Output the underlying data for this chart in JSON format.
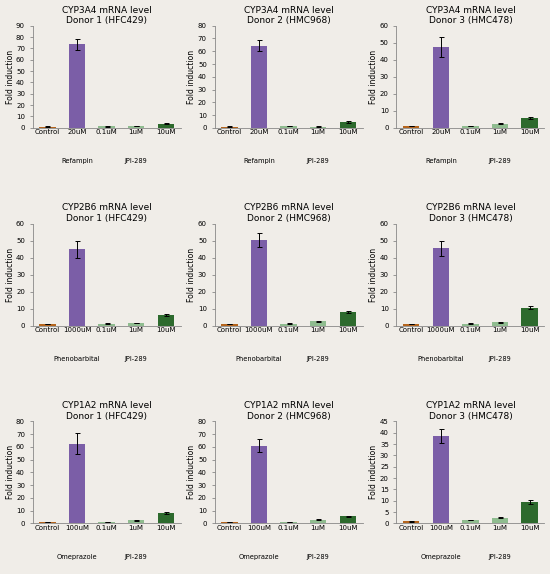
{
  "rows": [
    {
      "cyp": "CYP3A4",
      "inducer": "Refampin",
      "inducer_conc": "20uM",
      "jpi_concs": [
        "0.1uM",
        "1uM",
        "10uM"
      ],
      "donors": [
        {
          "title_line1": "CYP3A4 mRNA level",
          "title_line2": "Donor 1 (HFC429)",
          "values": [
            1.0,
            73.5,
            1.2,
            1.8,
            3.5
          ],
          "errors": [
            0.2,
            5.0,
            0.15,
            0.2,
            0.4
          ],
          "ylim": [
            0,
            90
          ],
          "yticks": [
            0,
            10,
            20,
            30,
            40,
            50,
            60,
            70,
            80,
            90
          ]
        },
        {
          "title_line1": "CYP3A4 mRNA level",
          "title_line2": "Donor 2 (HMC968)",
          "values": [
            1.0,
            64.5,
            1.3,
            1.0,
            4.5
          ],
          "errors": [
            0.2,
            4.0,
            0.2,
            0.15,
            0.5
          ],
          "ylim": [
            0,
            80
          ],
          "yticks": [
            0,
            10,
            20,
            30,
            40,
            50,
            60,
            70,
            80
          ]
        },
        {
          "title_line1": "CYP3A4 mRNA level",
          "title_line2": "Donor 3 (HMC478)",
          "values": [
            1.0,
            47.5,
            1.2,
            2.5,
            5.5
          ],
          "errors": [
            0.2,
            6.0,
            0.15,
            0.25,
            0.6
          ],
          "ylim": [
            0,
            60
          ],
          "yticks": [
            0,
            10,
            20,
            30,
            40,
            50,
            60
          ]
        }
      ]
    },
    {
      "cyp": "CYP2B6",
      "inducer": "Phenobarbital",
      "inducer_conc": "1000uM",
      "jpi_concs": [
        "0.1uM",
        "1uM",
        "10uM"
      ],
      "donors": [
        {
          "title_line1": "CYP2B6 mRNA level",
          "title_line2": "Donor 1 (HFC429)",
          "values": [
            1.0,
            45.0,
            1.2,
            1.5,
            6.5
          ],
          "errors": [
            0.2,
            5.0,
            0.15,
            0.2,
            0.6
          ],
          "ylim": [
            0,
            60
          ],
          "yticks": [
            0,
            10,
            20,
            30,
            40,
            50,
            60
          ]
        },
        {
          "title_line1": "CYP2B6 mRNA level",
          "title_line2": "Donor 2 (HMC968)",
          "values": [
            1.0,
            50.5,
            1.2,
            2.5,
            8.0
          ],
          "errors": [
            0.2,
            4.0,
            0.15,
            0.3,
            0.7
          ],
          "ylim": [
            0,
            60
          ],
          "yticks": [
            0,
            10,
            20,
            30,
            40,
            50,
            60
          ]
        },
        {
          "title_line1": "CYP2B6 mRNA level",
          "title_line2": "Donor 3 (HMC478)",
          "values": [
            1.0,
            45.5,
            1.2,
            2.0,
            10.5
          ],
          "errors": [
            0.2,
            4.5,
            0.15,
            0.25,
            0.8
          ],
          "ylim": [
            0,
            60
          ],
          "yticks": [
            0,
            10,
            20,
            30,
            40,
            50,
            60
          ]
        }
      ]
    },
    {
      "cyp": "CYP1A2",
      "inducer": "Omeprazole",
      "inducer_conc": "100uM",
      "jpi_concs": [
        "0.1uM",
        "1uM",
        "10uM"
      ],
      "donors": [
        {
          "title_line1": "CYP1A2 mRNA level",
          "title_line2": "Donor 1 (HFC429)",
          "values": [
            1.0,
            62.5,
            1.2,
            2.5,
            8.0
          ],
          "errors": [
            0.2,
            8.0,
            0.15,
            0.3,
            0.8
          ],
          "ylim": [
            0,
            80
          ],
          "yticks": [
            0,
            10,
            20,
            30,
            40,
            50,
            60,
            70,
            80
          ]
        },
        {
          "title_line1": "CYP1A2 mRNA level",
          "title_line2": "Donor 2 (HMC968)",
          "values": [
            1.0,
            61.0,
            1.0,
            2.8,
            5.5
          ],
          "errors": [
            0.2,
            5.0,
            0.15,
            0.3,
            0.6
          ],
          "ylim": [
            0,
            80
          ],
          "yticks": [
            0,
            10,
            20,
            30,
            40,
            50,
            60,
            70,
            80
          ]
        },
        {
          "title_line1": "CYP1A2 mRNA level",
          "title_line2": "Donor 3 (HMC478)",
          "values": [
            1.0,
            38.5,
            1.5,
            2.5,
            9.5
          ],
          "errors": [
            0.2,
            3.0,
            0.2,
            0.3,
            0.8
          ],
          "ylim": [
            0,
            45
          ],
          "yticks": [
            0,
            5,
            10,
            15,
            20,
            25,
            30,
            35,
            40,
            45
          ]
        }
      ]
    }
  ],
  "bar_colors": {
    "control": "#b5651d",
    "inducer": "#7b5ea7",
    "jpi_low": "#8fbc8f",
    "jpi_mid": "#8fbc8f",
    "jpi_high": "#2d6a2d"
  },
  "ylabel": "Fold induction",
  "background_color": "#f0ede8",
  "plot_bg_color": "#f0ede8",
  "title_fontsize": 6.5,
  "axis_fontsize": 5.5,
  "tick_fontsize": 5.0,
  "group_label_fontsize": 4.8
}
